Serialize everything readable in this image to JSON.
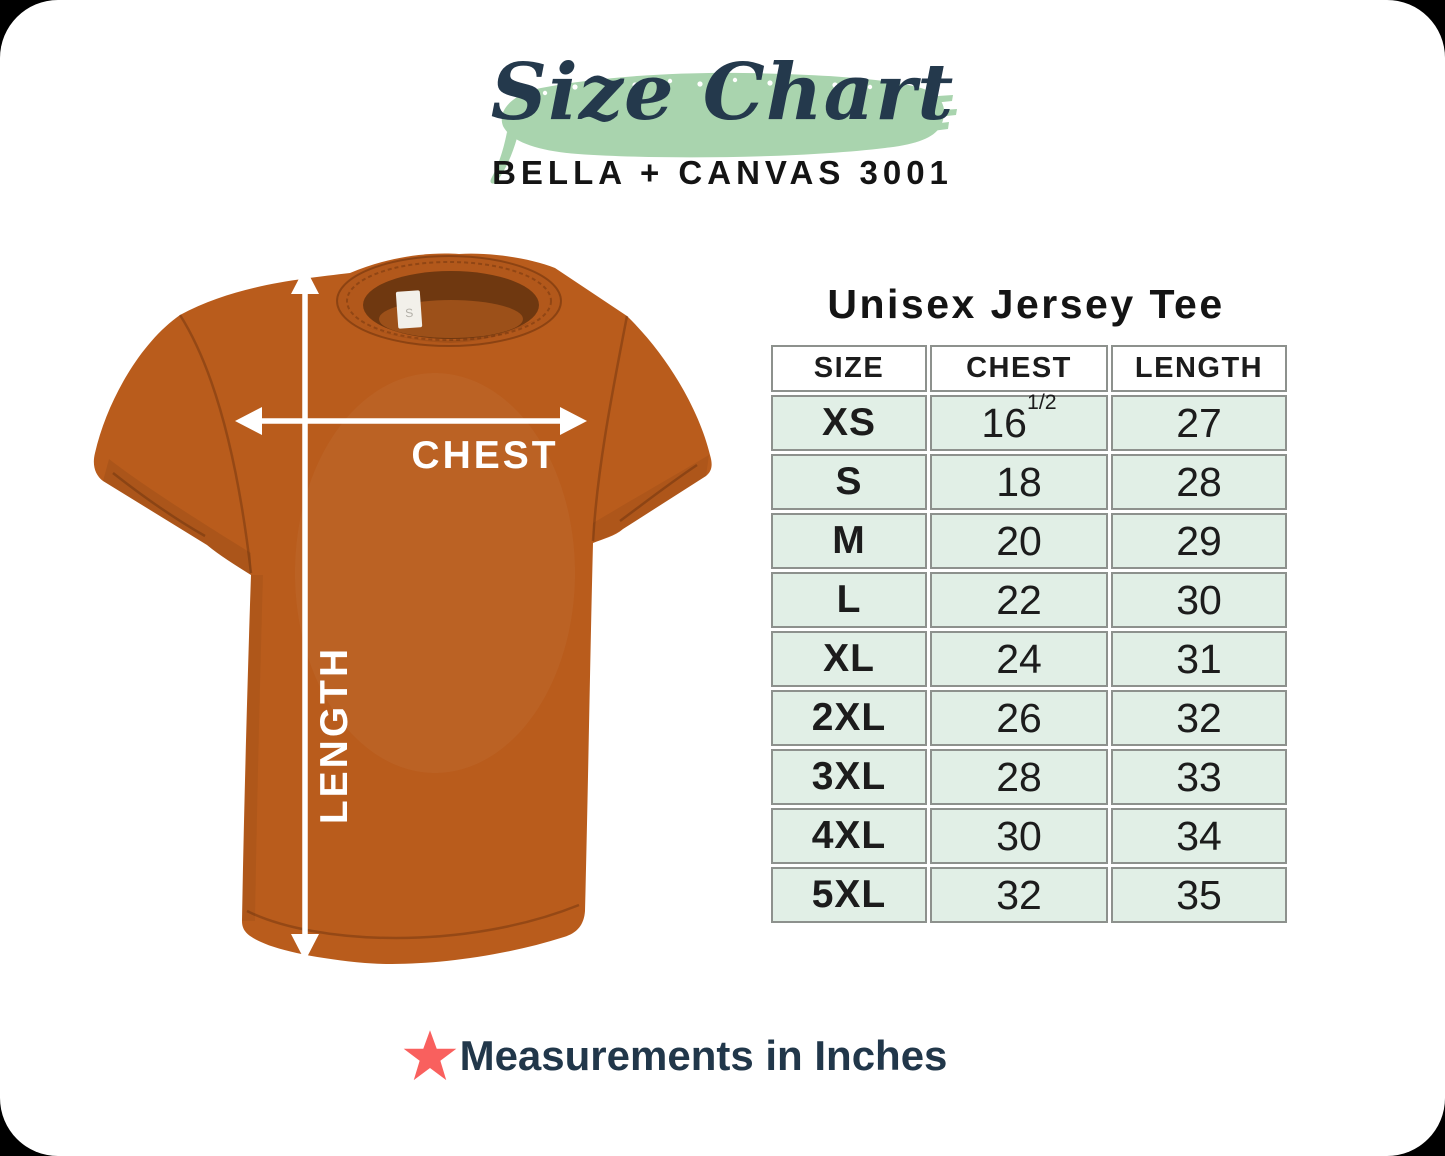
{
  "header": {
    "script_title": "Size Chart",
    "subtitle": "BELLA + CANVAS 3001"
  },
  "shirt": {
    "chest_label": "CHEST",
    "length_label": "LENGTH"
  },
  "chart_data": {
    "type": "table",
    "title": "Unisex Jersey Tee",
    "columns": [
      "SIZE",
      "CHEST",
      "LENGTH"
    ],
    "rows": [
      {
        "size": "XS",
        "chest": "16",
        "chest_fraction": "1/2",
        "length": "27"
      },
      {
        "size": "S",
        "chest": "18",
        "length": "28"
      },
      {
        "size": "M",
        "chest": "20",
        "length": "29"
      },
      {
        "size": "L",
        "chest": "22",
        "length": "30"
      },
      {
        "size": "XL",
        "chest": "24",
        "length": "31"
      },
      {
        "size": "2XL",
        "chest": "26",
        "length": "32"
      },
      {
        "size": "3XL",
        "chest": "28",
        "length": "33"
      },
      {
        "size": "4XL",
        "chest": "30",
        "length": "34"
      },
      {
        "size": "5XL",
        "chest": "32",
        "length": "35"
      }
    ],
    "units": "inches"
  },
  "footer": {
    "note": "Measurements in Inches"
  },
  "colors": {
    "brush_green": "#a9d4ae",
    "title_navy": "#24394c",
    "subtitle_ink": "#141414",
    "shirt_orange": "#b95c1c",
    "arrow_white": "#ffffff",
    "table_border": "#8d918d",
    "row_mint": "#e1efe6",
    "cell_ink": "#1c1c1c",
    "footer_navy": "#21374a",
    "star_red": "#f9605e"
  }
}
